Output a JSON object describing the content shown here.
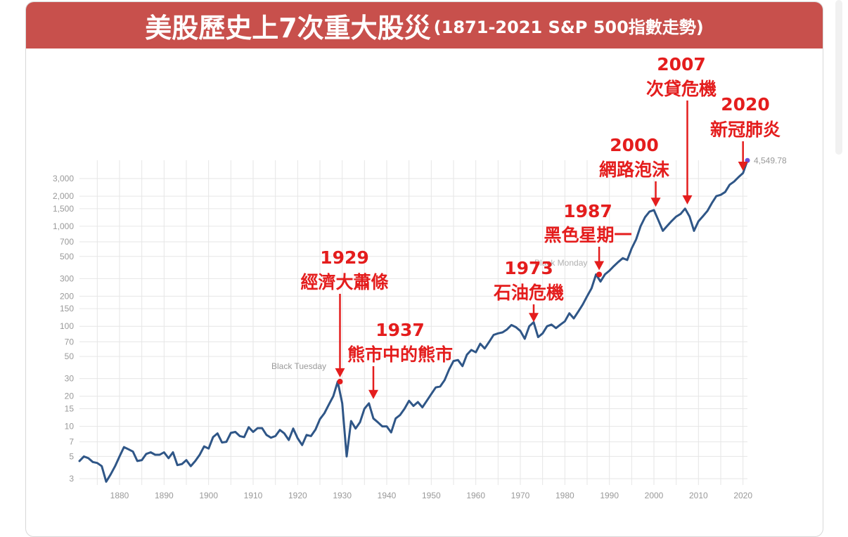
{
  "title_main": "美股歷史上7次重大股災",
  "title_sub": "(1871-2021 S&P 500指數走勢)",
  "colors": {
    "banner": "#c8504c",
    "line": "#2f5687",
    "annotation": "#e41d1d",
    "grid": "#e6e6e6",
    "tick": "#999999"
  },
  "chart_data": {
    "type": "line",
    "title": "",
    "xlabel": "",
    "ylabel": "",
    "xlim": [
      1871,
      2021
    ],
    "ylim": [
      2.5,
      5500
    ],
    "yscale": "log",
    "grid": true,
    "xticks": [
      1880,
      1890,
      1900,
      1910,
      1920,
      1930,
      1940,
      1950,
      1960,
      1970,
      1980,
      1990,
      2000,
      2010,
      2020
    ],
    "yticks": [
      3,
      5,
      7,
      10,
      15,
      20,
      30,
      50,
      70,
      100,
      150,
      200,
      300,
      500,
      700,
      1000,
      1500,
      2000,
      3000
    ],
    "ytick_labels": [
      "3",
      "5",
      "7",
      "10",
      "15",
      "20",
      "30",
      "50",
      "70",
      "100",
      "150",
      "200",
      "300",
      "500",
      "700",
      "1,000",
      "1,500",
      "2,000",
      "3,000"
    ],
    "series": [
      {
        "x": [
          1871,
          1872,
          1873,
          1874,
          1875,
          1876,
          1877,
          1878,
          1879,
          1880,
          1881,
          1882,
          1883,
          1884,
          1885,
          1886,
          1887,
          1888,
          1889,
          1890,
          1891,
          1892,
          1893,
          1894,
          1895,
          1896,
          1897,
          1898,
          1899,
          1900,
          1901,
          1902,
          1903,
          1904,
          1905,
          1906,
          1907,
          1908,
          1909,
          1910,
          1911,
          1912,
          1913,
          1914,
          1915,
          1916,
          1917,
          1918,
          1919,
          1920,
          1921,
          1922,
          1923,
          1924,
          1925,
          1926,
          1927,
          1928,
          1929,
          1930,
          1931,
          1932,
          1933,
          1934,
          1935,
          1936,
          1937,
          1938,
          1939,
          1940,
          1941,
          1942,
          1943,
          1944,
          1945,
          1946,
          1947,
          1948,
          1949,
          1950,
          1951,
          1952,
          1953,
          1954,
          1955,
          1956,
          1957,
          1958,
          1959,
          1960,
          1961,
          1962,
          1963,
          1964,
          1965,
          1966,
          1967,
          1968,
          1969,
          1970,
          1971,
          1972,
          1973,
          1974,
          1975,
          1976,
          1977,
          1978,
          1979,
          1980,
          1981,
          1982,
          1983,
          1984,
          1985,
          1986,
          1987,
          1988,
          1989,
          1990,
          1991,
          1992,
          1993,
          1994,
          1995,
          1996,
          1997,
          1998,
          1999,
          2000,
          2001,
          2002,
          2003,
          2004,
          2005,
          2006,
          2007,
          2008,
          2009,
          2010,
          2011,
          2012,
          2013,
          2014,
          2015,
          2016,
          2017,
          2018,
          2019,
          2020,
          2021
        ],
        "y": [
          4.5,
          5.0,
          4.8,
          4.4,
          4.3,
          4.0,
          2.8,
          3.3,
          4.0,
          5.0,
          6.2,
          5.9,
          5.6,
          4.5,
          4.6,
          5.3,
          5.5,
          5.2,
          5.2,
          5.5,
          4.8,
          5.5,
          4.1,
          4.2,
          4.6,
          4.0,
          4.5,
          5.2,
          6.3,
          6.0,
          7.8,
          8.5,
          6.9,
          7.0,
          8.6,
          8.8,
          8.0,
          7.8,
          9.8,
          8.8,
          9.6,
          9.6,
          8.2,
          7.7,
          8.0,
          9.2,
          8.5,
          7.3,
          9.5,
          7.6,
          6.5,
          8.2,
          8.0,
          9.3,
          11.8,
          13.5,
          16.5,
          20.0,
          28.0,
          17.0,
          5.0,
          11.3,
          9.5,
          11.0,
          15.0,
          17.0,
          12.0,
          11.0,
          10.0,
          10.0,
          8.7,
          12.0,
          13.0,
          15.0,
          18.0,
          16.0,
          17.5,
          15.5,
          18.0,
          21.0,
          24.5,
          25.0,
          29.0,
          37.0,
          45.0,
          46.0,
          40.0,
          52.0,
          58.0,
          55.0,
          67.0,
          60.0,
          70.0,
          82.0,
          85.0,
          87.0,
          93.0,
          103.0,
          98.0,
          90.0,
          75.0,
          100.0,
          110.0,
          78.0,
          85.0,
          100.0,
          104.0,
          96.0,
          104.0,
          112.0,
          135.0,
          120.0,
          140.0,
          165.0,
          200.0,
          240.0,
          330.0,
          280.0,
          330.0,
          360.0,
          400.0,
          440.0,
          480.0,
          460.0,
          600.0,
          740.0,
          1000.0,
          1230.0,
          1400.0,
          1450.0,
          1150.0,
          900.0,
          1010.0,
          1130.0,
          1250.0,
          1330.0,
          1500.0,
          1250.0,
          900.0,
          1120.0,
          1260.0,
          1420.0,
          1700.0,
          2000.0,
          2060.0,
          2200.0,
          2600.0,
          2800.0,
          3100.0,
          3400.0,
          4549.78
        ]
      }
    ],
    "end_label": "4,549.78",
    "events": [
      {
        "year": "1929",
        "name": "經濟大蕭條",
        "x": 1929.5,
        "y": 28
      },
      {
        "year": "1937",
        "name": "熊市中的熊市",
        "x": 1937,
        "y": 17
      },
      {
        "year": "1973",
        "name": "石油危機",
        "x": 1973,
        "y": 100
      },
      {
        "year": "1987",
        "name": "黑色星期一",
        "x": 1987.7,
        "y": 330
      },
      {
        "year": "2000",
        "name": "網路泡沫",
        "x": 2000.4,
        "y": 1420
      },
      {
        "year": "2007",
        "name": "次貸危機",
        "x": 2007.5,
        "y": 1500
      },
      {
        "year": "2020",
        "name": "新冠肺炎",
        "x": 2020,
        "y": 3250
      }
    ],
    "point_labels": [
      "Black Tuesday",
      "Black Monday"
    ]
  }
}
